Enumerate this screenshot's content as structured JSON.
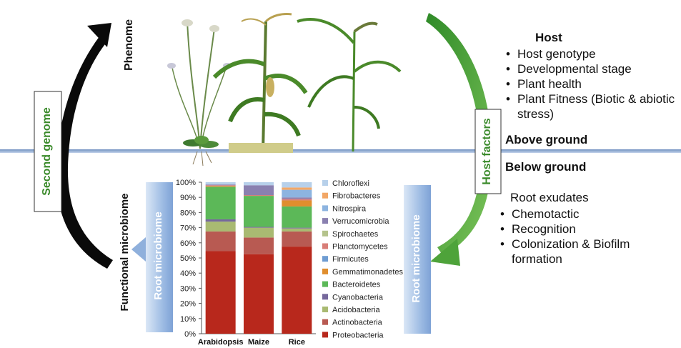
{
  "labels": {
    "phenome": "Phenome",
    "second_genome": "Second genome",
    "functional_microbiome": "Functional microbiome",
    "root_microbiome_left": "Root microbiome",
    "root_microbiome_right": "Root microbiome",
    "host_factors": "Host factors",
    "above_ground": "Above ground",
    "below_ground": "Below ground"
  },
  "host": {
    "title": "Host",
    "items": [
      "Host genotype",
      "Developmental stage",
      "Plant health",
      "Plant Fitness (Biotic & abiotic stress)"
    ]
  },
  "exudates": {
    "title": "Root exudates",
    "items": [
      "Chemotactic",
      "Recognition",
      "Colonization & Biofilm formation"
    ]
  },
  "colors": {
    "green_accent": "#5aa63a",
    "arrow_black": "#0a0a0a",
    "ground_line": "#8fa8c8",
    "microbiome_bar": "#8fb0dc"
  },
  "chart_data": {
    "type": "bar",
    "stacked": true,
    "categories": [
      "Arabidopsis",
      "Maize",
      "Rice"
    ],
    "ylim": [
      0,
      100
    ],
    "yticks": [
      "0%",
      "10%",
      "20%",
      "30%",
      "40%",
      "50%",
      "60%",
      "70%",
      "80%",
      "90%",
      "100%"
    ],
    "legend_position": "right",
    "series": [
      {
        "name": "Proteobacteria",
        "color": "#b8281c",
        "values": [
          54.5,
          52.5,
          57.5
        ]
      },
      {
        "name": "Actinobacteria",
        "color": "#b85a52",
        "values": [
          13,
          11,
          10
        ]
      },
      {
        "name": "Acidobacteria",
        "color": "#a9ba72",
        "values": [
          6.5,
          6.5,
          2
        ]
      },
      {
        "name": "Cyanobacteria",
        "color": "#76689c",
        "values": [
          1.5,
          0.5,
          0.5
        ]
      },
      {
        "name": "Bacteroidetes",
        "color": "#5cb858",
        "values": [
          21.5,
          20.5,
          14
        ]
      },
      {
        "name": "Gemmatimonadetes",
        "color": "#e08e2e",
        "values": [
          0.5,
          0,
          4
        ]
      },
      {
        "name": "Firmicutes",
        "color": "#6e9cd2",
        "values": [
          0,
          0,
          0
        ]
      },
      {
        "name": "Planctomycetes",
        "color": "#d87e78",
        "values": [
          0.5,
          0.5,
          1
        ]
      },
      {
        "name": "Spirochaetes",
        "color": "#b5c38c",
        "values": [
          0,
          0,
          0
        ]
      },
      {
        "name": "Verrucomicrobia",
        "color": "#8a80b0",
        "values": [
          0.5,
          6.5,
          1
        ]
      },
      {
        "name": "Nitrospira",
        "color": "#8db4e0",
        "values": [
          0,
          0,
          5
        ]
      },
      {
        "name": "Fibrobacteres",
        "color": "#f2a766",
        "values": [
          0,
          0,
          1.5
        ]
      },
      {
        "name": "Chloroflexi",
        "color": "#b7d0ea",
        "values": [
          1.5,
          2,
          3.5
        ]
      }
    ],
    "legend_order": [
      "Chloroflexi",
      "Fibrobacteres",
      "Nitrospira",
      "Verrucomicrobia",
      "Spirochaetes",
      "Planctomycetes",
      "Firmicutes",
      "Gemmatimonadetes",
      "Bacteroidetes",
      "Cyanobacteria",
      "Acidobacteria",
      "Actinobacteria",
      "Proteobacteria"
    ]
  }
}
